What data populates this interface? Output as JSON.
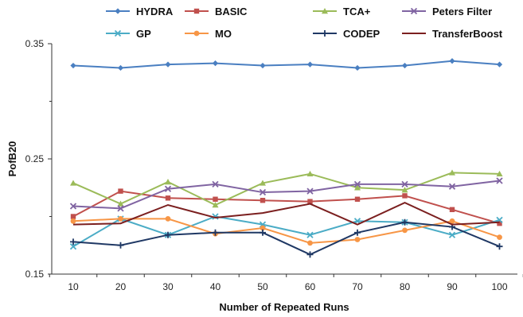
{
  "chart_data": {
    "type": "line",
    "title": "",
    "xlabel": "Number of Repeated Runs",
    "ylabel": "PofB20",
    "categories": [
      "10",
      "20",
      "30",
      "40",
      "50",
      "60",
      "70",
      "80",
      "90",
      "100"
    ],
    "ylim": [
      0.15,
      0.35
    ],
    "yticks": [
      "0.15",
      "0.25",
      "0.35"
    ],
    "grid": false,
    "legend_position": "top",
    "series": [
      {
        "name": "HYDRA",
        "color": "#4a7fc1",
        "marker": "diamond",
        "values": [
          0.331,
          0.329,
          0.332,
          0.333,
          0.331,
          0.332,
          0.329,
          0.331,
          0.335,
          0.332
        ]
      },
      {
        "name": "BASIC",
        "color": "#c0504d",
        "marker": "square",
        "values": [
          0.2,
          0.222,
          0.216,
          0.215,
          0.214,
          0.213,
          0.215,
          0.218,
          0.206,
          0.194
        ]
      },
      {
        "name": "TCA+",
        "color": "#9bbb59",
        "marker": "triangle",
        "values": [
          0.229,
          0.211,
          0.23,
          0.21,
          0.229,
          0.237,
          0.225,
          0.223,
          0.238,
          0.237
        ]
      },
      {
        "name": "Peters Filter",
        "color": "#8064a2",
        "marker": "x",
        "values": [
          0.209,
          0.207,
          0.224,
          0.228,
          0.221,
          0.222,
          0.228,
          0.228,
          0.226,
          0.231
        ]
      },
      {
        "name": "GP",
        "color": "#4bacc6",
        "marker": "x",
        "values": [
          0.174,
          0.198,
          0.184,
          0.2,
          0.193,
          0.184,
          0.196,
          0.195,
          0.184,
          0.197
        ]
      },
      {
        "name": "MO",
        "color": "#f79646",
        "marker": "circle",
        "values": [
          0.196,
          0.198,
          0.198,
          0.185,
          0.19,
          0.177,
          0.18,
          0.188,
          0.196,
          0.182
        ]
      },
      {
        "name": "CODEP",
        "color": "#1f3864",
        "marker": "plus",
        "values": [
          0.178,
          0.175,
          0.184,
          0.186,
          0.186,
          0.167,
          0.186,
          0.195,
          0.191,
          0.174
        ]
      },
      {
        "name": "TransferBoost",
        "color": "#7b1f1f",
        "marker": "none",
        "values": [
          0.193,
          0.194,
          0.21,
          0.199,
          0.203,
          0.211,
          0.193,
          0.212,
          0.193,
          0.195
        ]
      }
    ]
  }
}
